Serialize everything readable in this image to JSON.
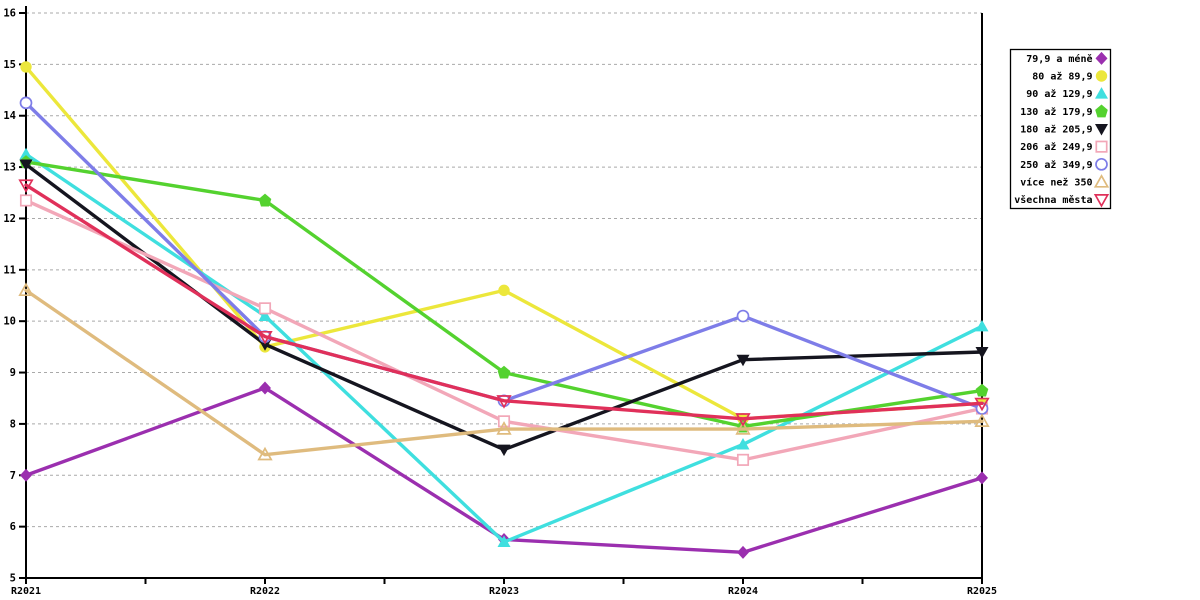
{
  "chart_data": {
    "type": "line",
    "title": "",
    "xlabel": "",
    "ylabel": "",
    "categories": [
      "R2021",
      "R2022",
      "R2023",
      "R2024",
      "R2025"
    ],
    "ylim": [
      5,
      16
    ],
    "yticks": [
      5,
      6,
      7,
      8,
      9,
      10,
      11,
      12,
      13,
      14,
      15,
      16
    ],
    "grid": "horizontal-dashed",
    "grid_color": "#a9a9a9",
    "axis_color": "#000000",
    "legend_position": "right",
    "legend_border_color": "#000000",
    "series": [
      {
        "name": "79,9 a méně",
        "color": "#9b2faf",
        "marker": "diamond-filled",
        "values": [
          7.0,
          8.7,
          5.75,
          5.5,
          6.95
        ]
      },
      {
        "name": "80 až 89,9",
        "color": "#ece73b",
        "marker": "circle-filled",
        "values": [
          14.95,
          9.5,
          10.6,
          8.1,
          8.4
        ]
      },
      {
        "name": "90 až 129,9",
        "color": "#3fdfdf",
        "marker": "triangle-up-filled",
        "values": [
          13.25,
          10.1,
          5.7,
          7.6,
          9.9
        ]
      },
      {
        "name": "130 až 179,9",
        "color": "#54d22f",
        "marker": "pentagon-filled",
        "values": [
          13.1,
          12.35,
          9.0,
          7.95,
          8.65
        ]
      },
      {
        "name": "180 až 205,9",
        "color": "#15151f",
        "marker": "triangle-down-filled",
        "values": [
          13.05,
          9.55,
          7.5,
          9.25,
          9.4
        ]
      },
      {
        "name": "206 až 249,9",
        "color": "#f2a7b8",
        "marker": "square-open",
        "values": [
          12.35,
          10.25,
          8.05,
          7.3,
          8.3
        ]
      },
      {
        "name": "250 až 349,9",
        "color": "#7e7de8",
        "marker": "circle-open",
        "values": [
          14.25,
          9.7,
          8.45,
          10.1,
          8.3
        ]
      },
      {
        "name": "více než 350",
        "color": "#dfbb7e",
        "marker": "triangle-up-open",
        "values": [
          10.6,
          7.4,
          7.9,
          7.9,
          8.05
        ]
      },
      {
        "name": "všechna města",
        "color": "#e0305a",
        "marker": "triangle-down-open",
        "values": [
          12.65,
          9.7,
          8.45,
          8.1,
          8.4
        ]
      }
    ]
  }
}
